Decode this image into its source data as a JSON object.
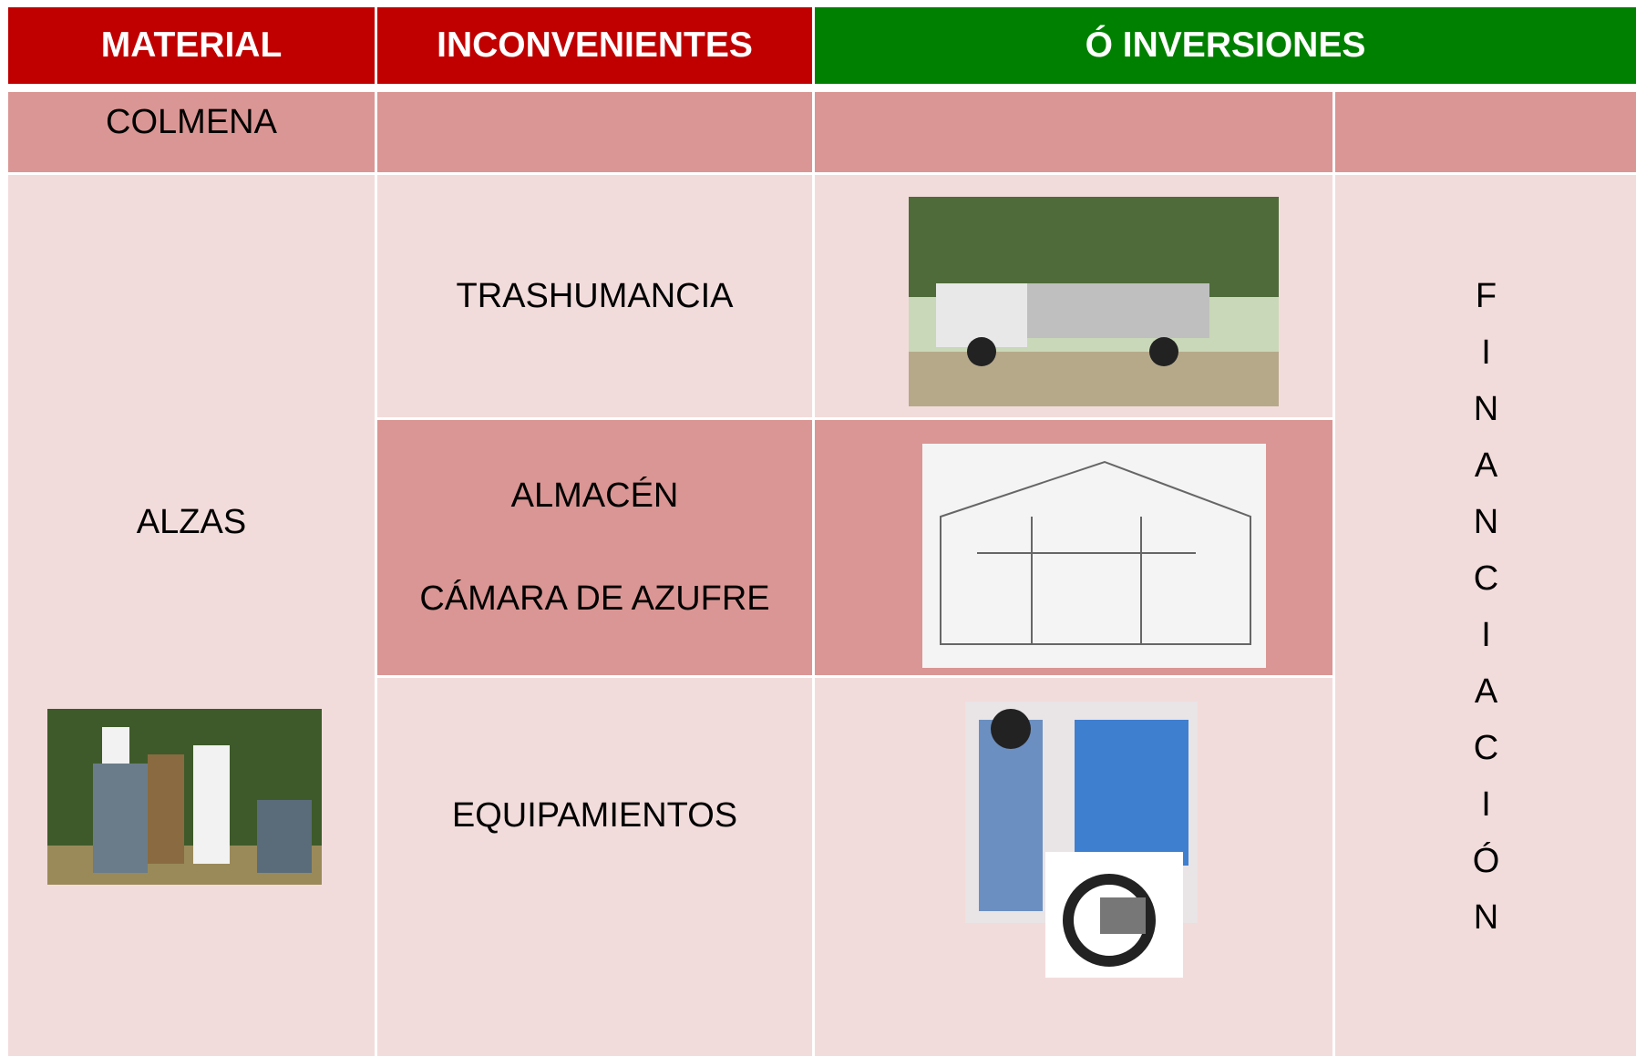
{
  "header": {
    "material": "MATERIAL",
    "inconvenientes": "INCONVENIENTES",
    "inversiones": "Ó  INVERSIONES"
  },
  "rows": {
    "colmena": "COLMENA",
    "alzas": "ALZAS",
    "inconvenientes": [
      "TRASHUMANCIA",
      "ALMACÉN",
      "CÁMARA DE AZUFRE",
      "EQUIPAMIENTOS"
    ]
  },
  "side": "FINANCIACIÓN"
}
